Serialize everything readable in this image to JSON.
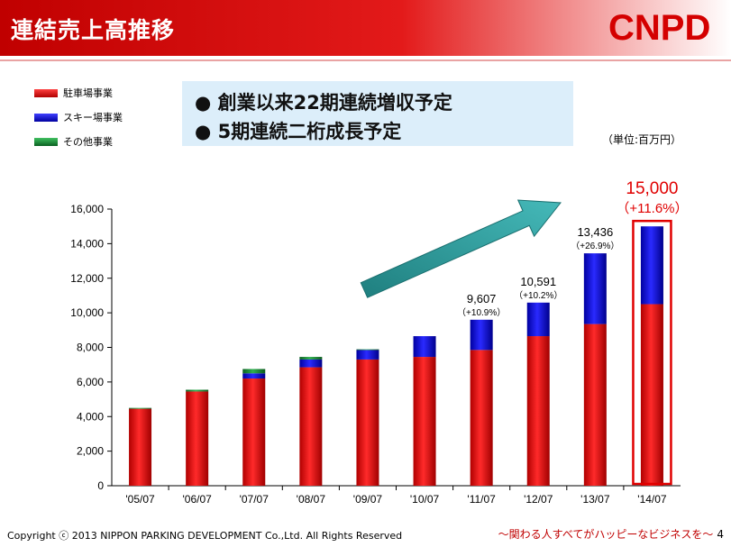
{
  "header": {
    "title": "連結売上高推移",
    "logo": "CNPD"
  },
  "legend": {
    "items": [
      {
        "label": "駐車場事業",
        "color": "#e00000"
      },
      {
        "label": "スキー場事業",
        "color": "#0000e6"
      },
      {
        "label": "その他事業",
        "color": "#1a8f3a"
      }
    ]
  },
  "callout": {
    "bullet": "●",
    "lines": [
      "創業以来22期連続増収予定",
      "5期連続二桁成長予定"
    ]
  },
  "unit_label": "（単位:百万円）",
  "footer": {
    "copyright": "Copyright ⓒ 2013 NIPPON PARKING DEVELOPMENT Co.,Ltd. All Rights Reserved",
    "slogan": "～関わる人すべてがハッピーなビジネスを～",
    "page": "4"
  },
  "chart_data": {
    "type": "bar",
    "stacked": true,
    "categories": [
      "'05/07",
      "'06/07",
      "'07/07",
      "'08/07",
      "'09/07",
      "'10/07",
      "'11/07",
      "'12/07",
      "'13/07",
      "'14/07"
    ],
    "series": [
      {
        "name": "駐車場事業",
        "color": "#e00000",
        "values": [
          4450,
          5450,
          6200,
          6850,
          7300,
          7450,
          7850,
          8650,
          9350,
          10500
        ]
      },
      {
        "name": "スキー場事業",
        "color": "#0000e6",
        "values": [
          0,
          0,
          300,
          450,
          550,
          1200,
          1750,
          1940,
          4090,
          4500
        ]
      },
      {
        "name": "その他事業",
        "color": "#1a8f3a",
        "values": [
          50,
          100,
          250,
          150,
          40,
          0,
          0,
          0,
          0,
          0
        ]
      }
    ],
    "ylim": [
      0,
      16000
    ],
    "yticks": [
      "0",
      "2,000",
      "4,000",
      "6,000",
      "8,000",
      "10,000",
      "12,000",
      "14,000",
      "16,000"
    ],
    "gridlines": false,
    "annotations": [
      {
        "category": "'11/07",
        "value": "9,607",
        "growth": "（+10.9%）"
      },
      {
        "category": "'12/07",
        "value": "10,591",
        "growth": "（+10.2%）"
      },
      {
        "category": "'13/07",
        "value": "13,436",
        "growth": "（+26.9%）"
      },
      {
        "category": "'14/07",
        "value": "15,000",
        "growth": "（+11.6%）",
        "highlight": true
      }
    ],
    "arrow_color": "#2a9a9a",
    "highlight_color": "#e00000"
  }
}
